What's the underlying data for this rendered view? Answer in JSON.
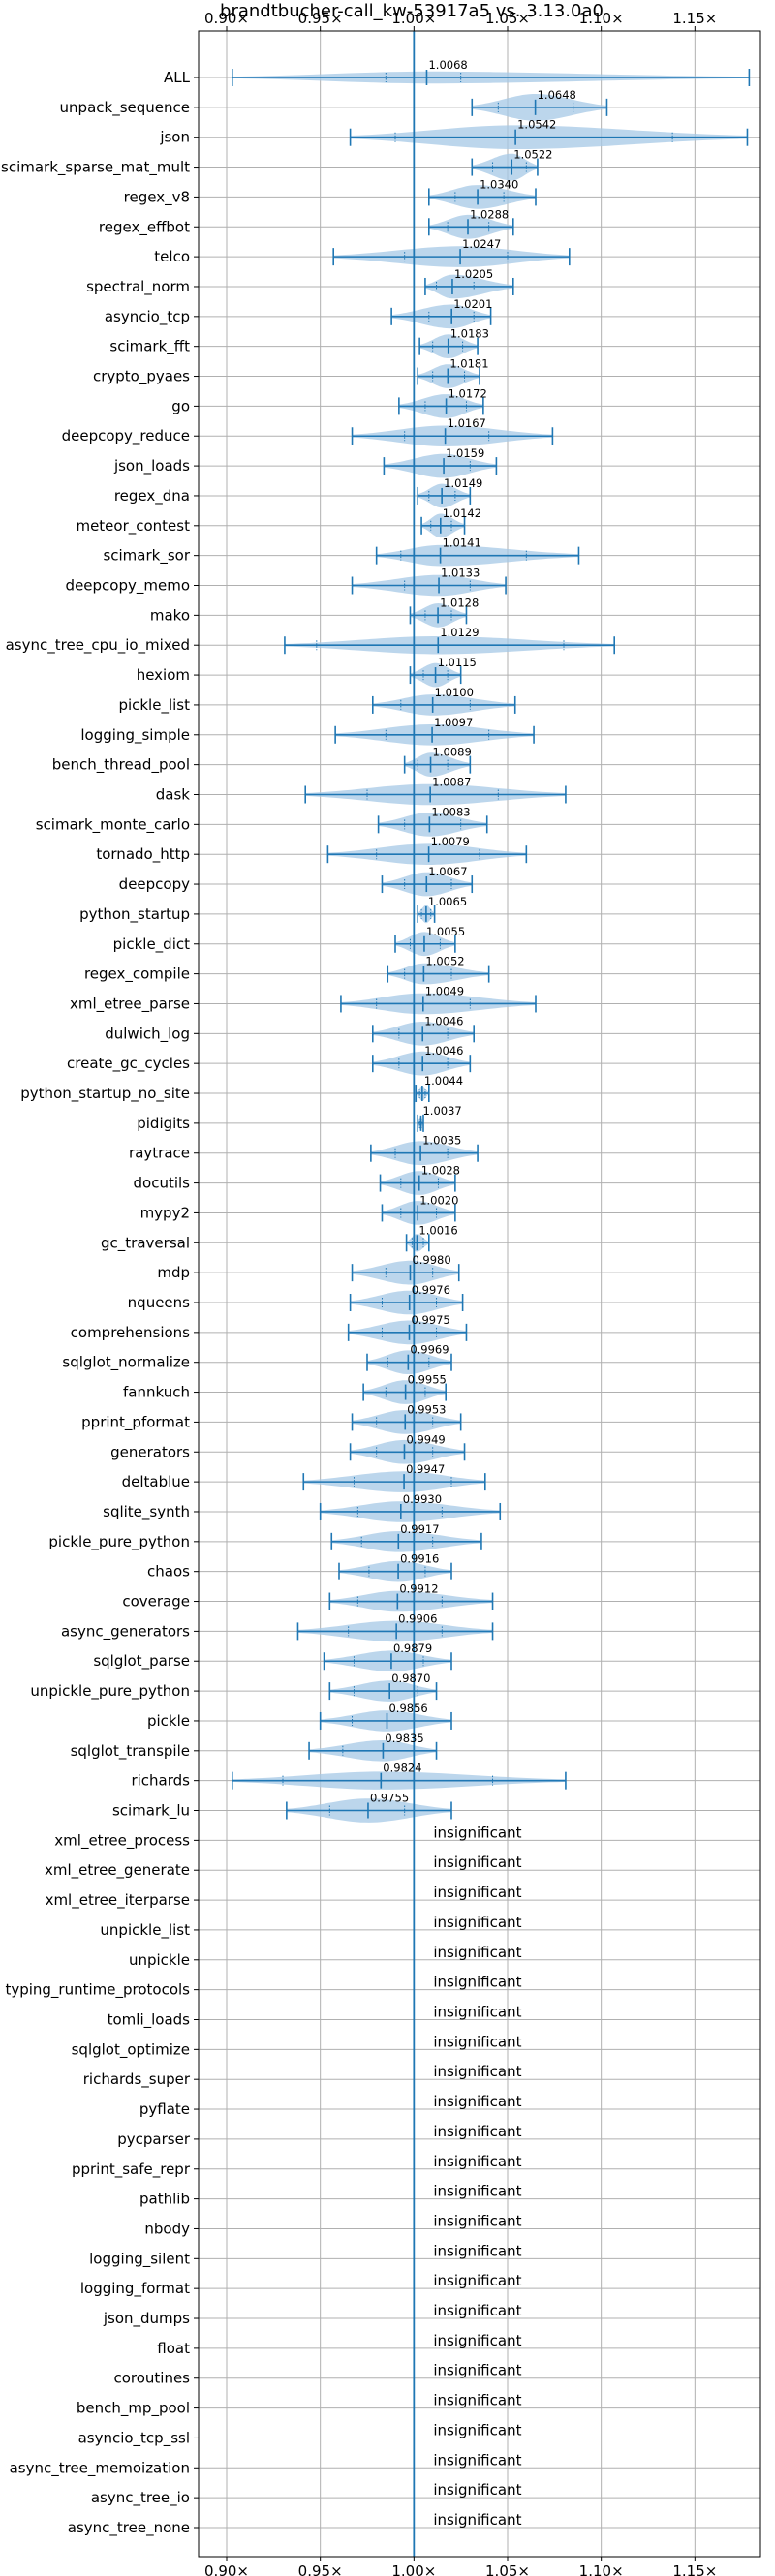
{
  "chart_data": {
    "type": "violin",
    "title": "brandtbucher-call_kw-53917a5 vs. 3.13.0a0",
    "xlim": [
      0.885,
      1.185
    ],
    "x_ticks": [
      0.9,
      0.95,
      1.0,
      1.05,
      1.1,
      1.15
    ],
    "x_tick_labels": [
      "0.90×",
      "0.95×",
      "1.00×",
      "1.05×",
      "1.10×",
      "1.15×"
    ],
    "reference_line": 1.0,
    "grid": true,
    "colors": {
      "violin": "#a6c8e6",
      "line": "#1f77b4",
      "grid": "#b0b0b0"
    },
    "insignificant_text": "insignificant",
    "benchmarks": [
      {
        "name": "ALL",
        "label": "1.0068",
        "mean": 1.0068,
        "min": 0.903,
        "max": 1.179,
        "q1": 0.985,
        "q3": 1.025,
        "width": 0.4
      },
      {
        "name": "unpack_sequence",
        "label": "1.0648",
        "mean": 1.0648,
        "min": 1.031,
        "max": 1.103,
        "q1": 1.045,
        "q3": 1.085,
        "width": 0.9
      },
      {
        "name": "json",
        "label": "1.0542",
        "mean": 1.0542,
        "min": 0.966,
        "max": 1.178,
        "q1": 0.99,
        "q3": 1.138,
        "width": 0.8
      },
      {
        "name": "scimark_sparse_mat_mult",
        "label": "1.0522",
        "mean": 1.0522,
        "min": 1.031,
        "max": 1.066,
        "q1": 1.042,
        "q3": 1.06,
        "width": 0.9
      },
      {
        "name": "regex_v8",
        "label": "1.0340",
        "mean": 1.034,
        "min": 1.008,
        "max": 1.065,
        "q1": 1.022,
        "q3": 1.048,
        "width": 0.8
      },
      {
        "name": "regex_effbot",
        "label": "1.0288",
        "mean": 1.0288,
        "min": 1.008,
        "max": 1.053,
        "q1": 1.018,
        "q3": 1.04,
        "width": 0.8
      },
      {
        "name": "telco",
        "label": "1.0247",
        "mean": 1.0247,
        "min": 0.957,
        "max": 1.083,
        "q1": 0.995,
        "q3": 1.05,
        "width": 0.7
      },
      {
        "name": "spectral_norm",
        "label": "1.0205",
        "mean": 1.0205,
        "min": 1.006,
        "max": 1.053,
        "q1": 1.012,
        "q3": 1.032,
        "width": 0.8
      },
      {
        "name": "asyncio_tcp",
        "label": "1.0201",
        "mean": 1.0201,
        "min": 0.988,
        "max": 1.041,
        "q1": 1.008,
        "q3": 1.032,
        "width": 0.8
      },
      {
        "name": "scimark_fft",
        "label": "1.0183",
        "mean": 1.0183,
        "min": 1.003,
        "max": 1.034,
        "q1": 1.01,
        "q3": 1.026,
        "width": 0.8
      },
      {
        "name": "crypto_pyaes",
        "label": "1.0181",
        "mean": 1.0181,
        "min": 1.002,
        "max": 1.035,
        "q1": 1.01,
        "q3": 1.027,
        "width": 0.8
      },
      {
        "name": "go",
        "label": "1.0172",
        "mean": 1.0172,
        "min": 0.992,
        "max": 1.037,
        "q1": 1.006,
        "q3": 1.028,
        "width": 0.8
      },
      {
        "name": "deepcopy_reduce",
        "label": "1.0167",
        "mean": 1.0167,
        "min": 0.967,
        "max": 1.074,
        "q1": 0.995,
        "q3": 1.04,
        "width": 0.7
      },
      {
        "name": "json_loads",
        "label": "1.0159",
        "mean": 1.0159,
        "min": 0.984,
        "max": 1.044,
        "q1": 1.0,
        "q3": 1.03,
        "width": 0.8
      },
      {
        "name": "regex_dna",
        "label": "1.0149",
        "mean": 1.0149,
        "min": 1.002,
        "max": 1.03,
        "q1": 1.008,
        "q3": 1.022,
        "width": 0.8
      },
      {
        "name": "meteor_contest",
        "label": "1.0142",
        "mean": 1.0142,
        "min": 1.004,
        "max": 1.027,
        "q1": 1.009,
        "q3": 1.02,
        "width": 0.8
      },
      {
        "name": "scimark_sor",
        "label": "1.0141",
        "mean": 1.0141,
        "min": 0.98,
        "max": 1.088,
        "q1": 0.993,
        "q3": 1.06,
        "width": 0.7
      },
      {
        "name": "deepcopy_memo",
        "label": "1.0133",
        "mean": 1.0133,
        "min": 0.967,
        "max": 1.049,
        "q1": 0.995,
        "q3": 1.03,
        "width": 0.7
      },
      {
        "name": "mako",
        "label": "1.0128",
        "mean": 1.0128,
        "min": 0.998,
        "max": 1.028,
        "q1": 1.006,
        "q3": 1.02,
        "width": 0.8
      },
      {
        "name": "async_tree_cpu_io_mixed",
        "label": "1.0129",
        "mean": 1.0129,
        "min": 0.931,
        "max": 1.107,
        "q1": 0.948,
        "q3": 1.08,
        "width": 0.6
      },
      {
        "name": "hexiom",
        "label": "1.0115",
        "mean": 1.0115,
        "min": 0.998,
        "max": 1.025,
        "q1": 1.005,
        "q3": 1.018,
        "width": 0.8
      },
      {
        "name": "pickle_list",
        "label": "1.0100",
        "mean": 1.01,
        "min": 0.978,
        "max": 1.054,
        "q1": 0.993,
        "q3": 1.03,
        "width": 0.7
      },
      {
        "name": "logging_simple",
        "label": "1.0097",
        "mean": 1.0097,
        "min": 0.958,
        "max": 1.064,
        "q1": 0.985,
        "q3": 1.04,
        "width": 0.7
      },
      {
        "name": "bench_thread_pool",
        "label": "1.0089",
        "mean": 1.0089,
        "min": 0.995,
        "max": 1.03,
        "q1": 1.002,
        "q3": 1.018,
        "width": 0.8
      },
      {
        "name": "dask",
        "label": "1.0087",
        "mean": 1.0087,
        "min": 0.942,
        "max": 1.081,
        "q1": 0.975,
        "q3": 1.045,
        "width": 0.7
      },
      {
        "name": "scimark_monte_carlo",
        "label": "1.0083",
        "mean": 1.0083,
        "min": 0.981,
        "max": 1.039,
        "q1": 0.995,
        "q3": 1.025,
        "width": 0.8
      },
      {
        "name": "tornado_http",
        "label": "1.0079",
        "mean": 1.0079,
        "min": 0.954,
        "max": 1.06,
        "q1": 0.98,
        "q3": 1.035,
        "width": 0.7
      },
      {
        "name": "deepcopy",
        "label": "1.0067",
        "mean": 1.0067,
        "min": 0.983,
        "max": 1.031,
        "q1": 0.995,
        "q3": 1.02,
        "width": 0.8
      },
      {
        "name": "python_startup",
        "label": "1.0065",
        "mean": 1.0065,
        "min": 1.002,
        "max": 1.011,
        "q1": 1.004,
        "q3": 1.009,
        "width": 0.6
      },
      {
        "name": "pickle_dict",
        "label": "1.0055",
        "mean": 1.0055,
        "min": 0.99,
        "max": 1.022,
        "q1": 0.998,
        "q3": 1.014,
        "width": 0.8
      },
      {
        "name": "regex_compile",
        "label": "1.0052",
        "mean": 1.0052,
        "min": 0.986,
        "max": 1.04,
        "q1": 0.995,
        "q3": 1.02,
        "width": 0.7
      },
      {
        "name": "xml_etree_parse",
        "label": "1.0049",
        "mean": 1.0049,
        "min": 0.961,
        "max": 1.065,
        "q1": 0.98,
        "q3": 1.03,
        "width": 0.7
      },
      {
        "name": "dulwich_log",
        "label": "1.0046",
        "mean": 1.0046,
        "min": 0.978,
        "max": 1.032,
        "q1": 0.992,
        "q3": 1.018,
        "width": 0.8
      },
      {
        "name": "create_gc_cycles",
        "label": "1.0046",
        "mean": 1.0046,
        "min": 0.978,
        "max": 1.03,
        "q1": 0.992,
        "q3": 1.018,
        "width": 0.8
      },
      {
        "name": "python_startup_no_site",
        "label": "1.0044",
        "mean": 1.0044,
        "min": 1.001,
        "max": 1.008,
        "q1": 1.003,
        "q3": 1.006,
        "width": 0.5
      },
      {
        "name": "pidigits",
        "label": "1.0037",
        "mean": 1.0037,
        "min": 1.002,
        "max": 1.005,
        "q1": 1.003,
        "q3": 1.004,
        "width": 0.5
      },
      {
        "name": "raytrace",
        "label": "1.0035",
        "mean": 1.0035,
        "min": 0.977,
        "max": 1.034,
        "q1": 0.99,
        "q3": 1.018,
        "width": 0.8
      },
      {
        "name": "docutils",
        "label": "1.0028",
        "mean": 1.0028,
        "min": 0.982,
        "max": 1.022,
        "q1": 0.993,
        "q3": 1.013,
        "width": 0.8
      },
      {
        "name": "mypy2",
        "label": "1.0020",
        "mean": 1.002,
        "min": 0.983,
        "max": 1.022,
        "q1": 0.993,
        "q3": 1.012,
        "width": 0.8
      },
      {
        "name": "gc_traversal",
        "label": "1.0016",
        "mean": 1.0016,
        "min": 0.996,
        "max": 1.008,
        "q1": 0.999,
        "q3": 1.005,
        "width": 0.6
      },
      {
        "name": "mdp",
        "label": "0.9980",
        "mean": 0.998,
        "min": 0.967,
        "max": 1.024,
        "q1": 0.985,
        "q3": 1.01,
        "width": 0.8
      },
      {
        "name": "nqueens",
        "label": "0.9976",
        "mean": 0.9976,
        "min": 0.966,
        "max": 1.026,
        "q1": 0.983,
        "q3": 1.012,
        "width": 0.8
      },
      {
        "name": "comprehensions",
        "label": "0.9975",
        "mean": 0.9975,
        "min": 0.965,
        "max": 1.028,
        "q1": 0.983,
        "q3": 1.012,
        "width": 0.8
      },
      {
        "name": "sqlglot_normalize",
        "label": "0.9969",
        "mean": 0.9969,
        "min": 0.975,
        "max": 1.02,
        "q1": 0.986,
        "q3": 1.008,
        "width": 0.8
      },
      {
        "name": "fannkuch",
        "label": "0.9955",
        "mean": 0.9955,
        "min": 0.973,
        "max": 1.017,
        "q1": 0.985,
        "q3": 1.006,
        "width": 0.8
      },
      {
        "name": "pprint_pformat",
        "label": "0.9953",
        "mean": 0.9953,
        "min": 0.967,
        "max": 1.025,
        "q1": 0.98,
        "q3": 1.01,
        "width": 0.8
      },
      {
        "name": "generators",
        "label": "0.9949",
        "mean": 0.9949,
        "min": 0.966,
        "max": 1.027,
        "q1": 0.98,
        "q3": 1.01,
        "width": 0.8
      },
      {
        "name": "deltablue",
        "label": "0.9947",
        "mean": 0.9947,
        "min": 0.941,
        "max": 1.038,
        "q1": 0.968,
        "q3": 1.02,
        "width": 0.7
      },
      {
        "name": "sqlite_synth",
        "label": "0.9930",
        "mean": 0.993,
        "min": 0.95,
        "max": 1.046,
        "q1": 0.97,
        "q3": 1.015,
        "width": 0.7
      },
      {
        "name": "pickle_pure_python",
        "label": "0.9917",
        "mean": 0.9917,
        "min": 0.956,
        "max": 1.036,
        "q1": 0.972,
        "q3": 1.01,
        "width": 0.7
      },
      {
        "name": "chaos",
        "label": "0.9916",
        "mean": 0.9916,
        "min": 0.96,
        "max": 1.02,
        "q1": 0.976,
        "q3": 1.006,
        "width": 0.7
      },
      {
        "name": "coverage",
        "label": "0.9912",
        "mean": 0.9912,
        "min": 0.955,
        "max": 1.042,
        "q1": 0.97,
        "q3": 1.015,
        "width": 0.7
      },
      {
        "name": "async_generators",
        "label": "0.9906",
        "mean": 0.9906,
        "min": 0.938,
        "max": 1.042,
        "q1": 0.965,
        "q3": 1.015,
        "width": 0.7
      },
      {
        "name": "sqlglot_parse",
        "label": "0.9879",
        "mean": 0.9879,
        "min": 0.952,
        "max": 1.02,
        "q1": 0.968,
        "q3": 1.005,
        "width": 0.7
      },
      {
        "name": "unpickle_pure_python",
        "label": "0.9870",
        "mean": 0.987,
        "min": 0.955,
        "max": 1.012,
        "q1": 0.968,
        "q3": 1.002,
        "width": 0.7
      },
      {
        "name": "pickle",
        "label": "0.9856",
        "mean": 0.9856,
        "min": 0.95,
        "max": 1.02,
        "q1": 0.967,
        "q3": 1.0,
        "width": 0.7
      },
      {
        "name": "sqlglot_transpile",
        "label": "0.9835",
        "mean": 0.9835,
        "min": 0.944,
        "max": 1.012,
        "q1": 0.962,
        "q3": 1.0,
        "width": 0.7
      },
      {
        "name": "richards",
        "label": "0.9824",
        "mean": 0.9824,
        "min": 0.903,
        "max": 1.081,
        "q1": 0.93,
        "q3": 1.042,
        "width": 0.6
      },
      {
        "name": "scimark_lu",
        "label": "0.9755",
        "mean": 0.9755,
        "min": 0.932,
        "max": 1.02,
        "q1": 0.955,
        "q3": 0.995,
        "width": 0.8
      },
      {
        "name": "xml_etree_process",
        "label": "insignificant",
        "mean": null
      },
      {
        "name": "xml_etree_generate",
        "label": "insignificant",
        "mean": null
      },
      {
        "name": "xml_etree_iterparse",
        "label": "insignificant",
        "mean": null
      },
      {
        "name": "unpickle_list",
        "label": "insignificant",
        "mean": null
      },
      {
        "name": "unpickle",
        "label": "insignificant",
        "mean": null
      },
      {
        "name": "typing_runtime_protocols",
        "label": "insignificant",
        "mean": null
      },
      {
        "name": "tomli_loads",
        "label": "insignificant",
        "mean": null
      },
      {
        "name": "sqlglot_optimize",
        "label": "insignificant",
        "mean": null
      },
      {
        "name": "richards_super",
        "label": "insignificant",
        "mean": null
      },
      {
        "name": "pyflate",
        "label": "insignificant",
        "mean": null
      },
      {
        "name": "pycparser",
        "label": "insignificant",
        "mean": null
      },
      {
        "name": "pprint_safe_repr",
        "label": "insignificant",
        "mean": null
      },
      {
        "name": "pathlib",
        "label": "insignificant",
        "mean": null
      },
      {
        "name": "nbody",
        "label": "insignificant",
        "mean": null
      },
      {
        "name": "logging_silent",
        "label": "insignificant",
        "mean": null
      },
      {
        "name": "logging_format",
        "label": "insignificant",
        "mean": null
      },
      {
        "name": "json_dumps",
        "label": "insignificant",
        "mean": null
      },
      {
        "name": "float",
        "label": "insignificant",
        "mean": null
      },
      {
        "name": "coroutines",
        "label": "insignificant",
        "mean": null
      },
      {
        "name": "bench_mp_pool",
        "label": "insignificant",
        "mean": null
      },
      {
        "name": "asyncio_tcp_ssl",
        "label": "insignificant",
        "mean": null
      },
      {
        "name": "async_tree_memoization",
        "label": "insignificant",
        "mean": null
      },
      {
        "name": "async_tree_io",
        "label": "insignificant",
        "mean": null
      },
      {
        "name": "async_tree_none",
        "label": "insignificant",
        "mean": null
      }
    ]
  }
}
